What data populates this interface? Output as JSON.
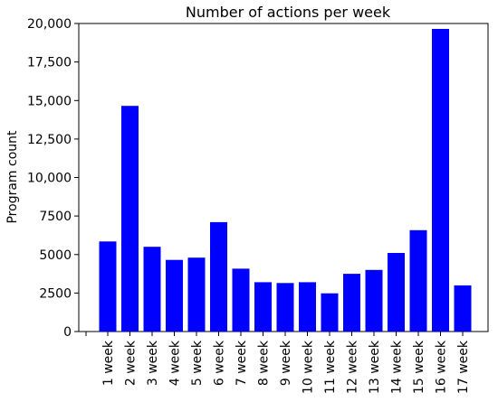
{
  "chart_data": {
    "type": "bar",
    "title": "Number of actions per week",
    "xlabel": "",
    "ylabel": "Program count",
    "categories": [
      "1 week",
      "2 week",
      "3 week",
      "4 week",
      "5 week",
      "6 week",
      "7 week",
      "8 week",
      "9 week",
      "10 week",
      "11 week",
      "12 week",
      "13 week",
      "14 week",
      "15 week",
      "16 week",
      "17 week"
    ],
    "values": [
      5850,
      14650,
      5500,
      4650,
      4800,
      7100,
      4080,
      3200,
      3150,
      3200,
      2480,
      3750,
      4000,
      5100,
      6580,
      19650,
      3000
    ],
    "ylim": [
      0,
      20000
    ],
    "yticks": [
      0,
      2500,
      5000,
      7500,
      10000,
      12500,
      15000,
      17500,
      20000
    ],
    "ytick_labels": [
      "0",
      "2500",
      "5000",
      "7500",
      "10,000",
      "12,500",
      "15,000",
      "17,500",
      "20,000"
    ],
    "grid": false,
    "colors": {
      "bar": "#0000ff",
      "axis": "#000000"
    }
  }
}
